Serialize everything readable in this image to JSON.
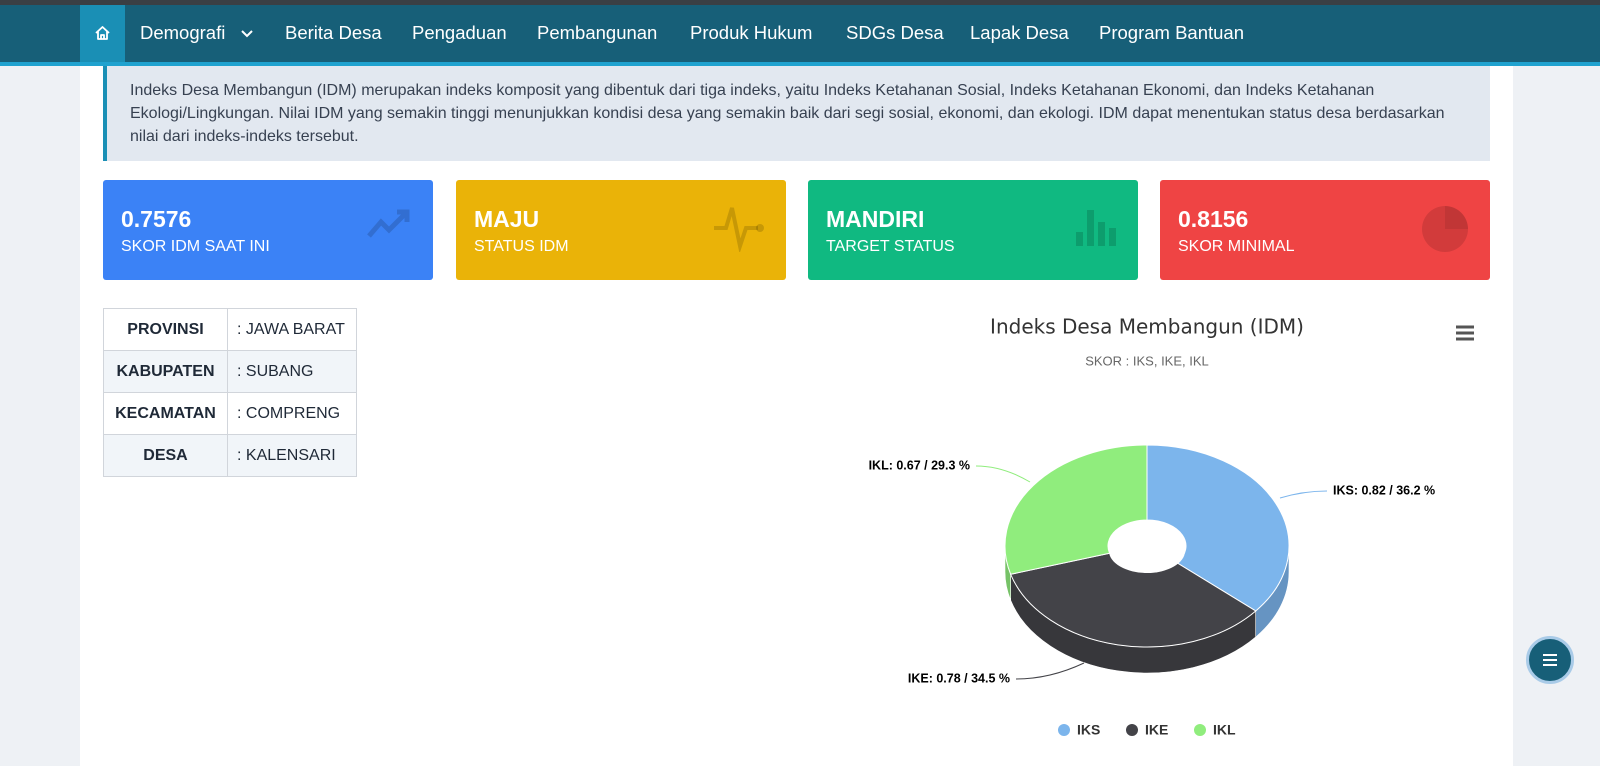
{
  "nav": {
    "items": [
      "Demografi",
      "Berita Desa",
      "Pengaduan",
      "Pembangunan",
      "Produk Hukum",
      "SDGs Desa",
      "Lapak Desa",
      "Program Bantuan"
    ]
  },
  "intro": "Indeks Desa Membangun (IDM) merupakan indeks komposit yang dibentuk dari tiga indeks, yaitu Indeks Ketahanan Sosial, Indeks Ketahanan Ekonomi, dan Indeks Ketahanan Ekologi/Lingkungan. Nilai IDM yang semakin tinggi menunjukkan kondisi desa yang semakin baik dari segi sosial, ekonomi, dan ekologi. IDM dapat menentukan status desa berdasarkan nilai dari indeks-indeks tersebut.",
  "cards": [
    {
      "value": 0.7576,
      "label": "SKOR IDM SAAT INI"
    },
    {
      "value": "MAJU",
      "label": "STATUS IDM"
    },
    {
      "value": "MANDIRI",
      "label": "TARGET STATUS"
    },
    {
      "value": 0.8156,
      "label": "SKOR MINIMAL"
    }
  ],
  "location_table": {
    "rows": [
      [
        "PROVINSI",
        ": JAWA BARAT"
      ],
      [
        "KABUPATEN",
        ": SUBANG"
      ],
      [
        "KECAMATAN",
        ": COMPRENG"
      ],
      [
        "DESA",
        ": KALENSARI"
      ]
    ]
  },
  "chart_data": {
    "type": "pie",
    "title": "Indeks Desa Membangun (IDM)",
    "subtitle": "SKOR : IKS, IKE, IKL",
    "categories": [
      "IKS",
      "IKE",
      "IKL"
    ],
    "values": [
      0.82,
      0.78,
      0.67
    ],
    "value_labels": [
      "IKS: 0.82 / 36.2 %",
      "IKE: 0.78 / 34.5 %",
      "IKL: 0.67 / 29.3 %"
    ],
    "colors": [
      "#7cb5ec",
      "#434348",
      "#90ed7d"
    ],
    "legend": "bottom"
  }
}
